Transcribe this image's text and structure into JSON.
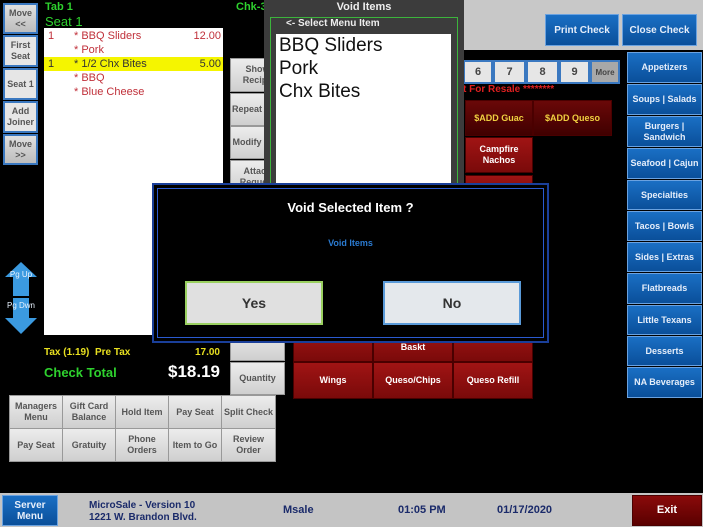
{
  "header": {
    "tab": "Tab  1",
    "check": "Chk-3",
    "seat": "Seat 1"
  },
  "left_buttons": [
    "Move <<",
    "First Seat",
    "Seat 1",
    "Add Joiner",
    "Move >>"
  ],
  "order": [
    {
      "qty": "1",
      "name": "* BBQ Sliders",
      "price": "12.00",
      "selected": false
    },
    {
      "qty": "",
      "name": "* Pork",
      "price": "",
      "selected": false
    },
    {
      "qty": "1",
      "name": "* 1/2 Chx Bites",
      "price": "5.00",
      "selected": true
    },
    {
      "qty": "",
      "name": "* BBQ",
      "price": "",
      "selected": false
    },
    {
      "qty": "",
      "name": "* Blue Cheese",
      "price": "",
      "selected": false
    }
  ],
  "paging": {
    "up": "Pg Up",
    "down": "Pg Dwn"
  },
  "totals": {
    "tax_label": "Tax (1.19)  Pre Tax",
    "pretax": "17.00",
    "total_label": "Check Total",
    "total": "$18.19"
  },
  "mid_buttons": [
    "Show Recipe",
    "Repeat Item",
    "Modify Item",
    "Attach Request",
    "Quantity"
  ],
  "bottom_grid": [
    [
      "Managers Menu",
      "Gift Card Balance",
      "Hold Item",
      "Pay Seat",
      "Split Check"
    ],
    [
      "Pay Seat",
      "Gratuity",
      "Phone Orders",
      "Item to Go",
      "Review Order"
    ]
  ],
  "void_panel": {
    "title": "Void Items",
    "subtitle": "<- Select Menu Item",
    "items": [
      "BBQ Sliders",
      "Pork",
      "Chx Bites"
    ]
  },
  "top_right": {
    "print": "Print Check",
    "close": "Close Check"
  },
  "number_row": [
    "6",
    "7",
    "8",
    "9",
    "More"
  ],
  "resale_text": "t For Resale ********",
  "menu_items": {
    "guac": "$ADD Guac",
    "queso": "$ADD Queso",
    "nachos": "Campfire Nachos",
    "baskt": "Baskt",
    "wings": "Wings",
    "queso_chips": "Queso/Chips",
    "queso_refill": "Queso Refill"
  },
  "categories": [
    "Appetizers",
    "Soups | Salads",
    "Burgers | Sandwich",
    "Seafood | Cajun",
    "Specialties",
    "Tacos | Bowls",
    "Sides | Extras",
    "Flatbreads",
    "Little Texans",
    "Desserts",
    "NA Beverages"
  ],
  "dialog": {
    "title": "Void Selected Item ?",
    "subtitle": "Void Items",
    "yes": "Yes",
    "no": "No"
  },
  "footer": {
    "server_menu": "Server Menu",
    "app": "MicroSale - Version 10",
    "address": "1221 W. Brandon Blvd.",
    "user": "Msale",
    "time": "01:05 PM",
    "date": "01/17/2020",
    "exit": "Exit"
  }
}
